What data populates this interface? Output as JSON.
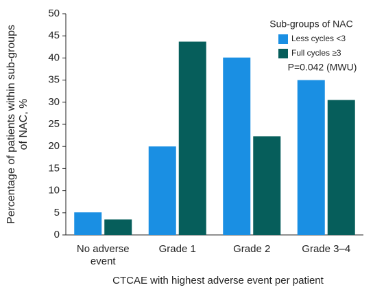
{
  "chart_data": {
    "type": "bar",
    "ylabel": "Percentage of patients within sub-groups of NAC, %",
    "xlabel": "CTCAE with highest adverse event per patient",
    "categories": [
      "No adverse event",
      "Grade 1",
      "Grade 2",
      "Grade 3–4"
    ],
    "series": [
      {
        "name": "Less cycles <3",
        "color": "#1a8fe3",
        "values": [
          5.1,
          20,
          40.1,
          35
        ]
      },
      {
        "name": "Full cycles ≥3",
        "color": "#065e5b",
        "values": [
          3.5,
          43.7,
          22.3,
          30.5
        ]
      }
    ],
    "legend_title": "Sub-groups of NAC",
    "annotation": "P=0.042 (MWU)",
    "legend": "upper right",
    "grid": false,
    "ylim": [
      0,
      50
    ],
    "yticks": [
      0,
      5,
      10,
      15,
      20,
      25,
      30,
      35,
      40,
      45,
      50
    ]
  }
}
